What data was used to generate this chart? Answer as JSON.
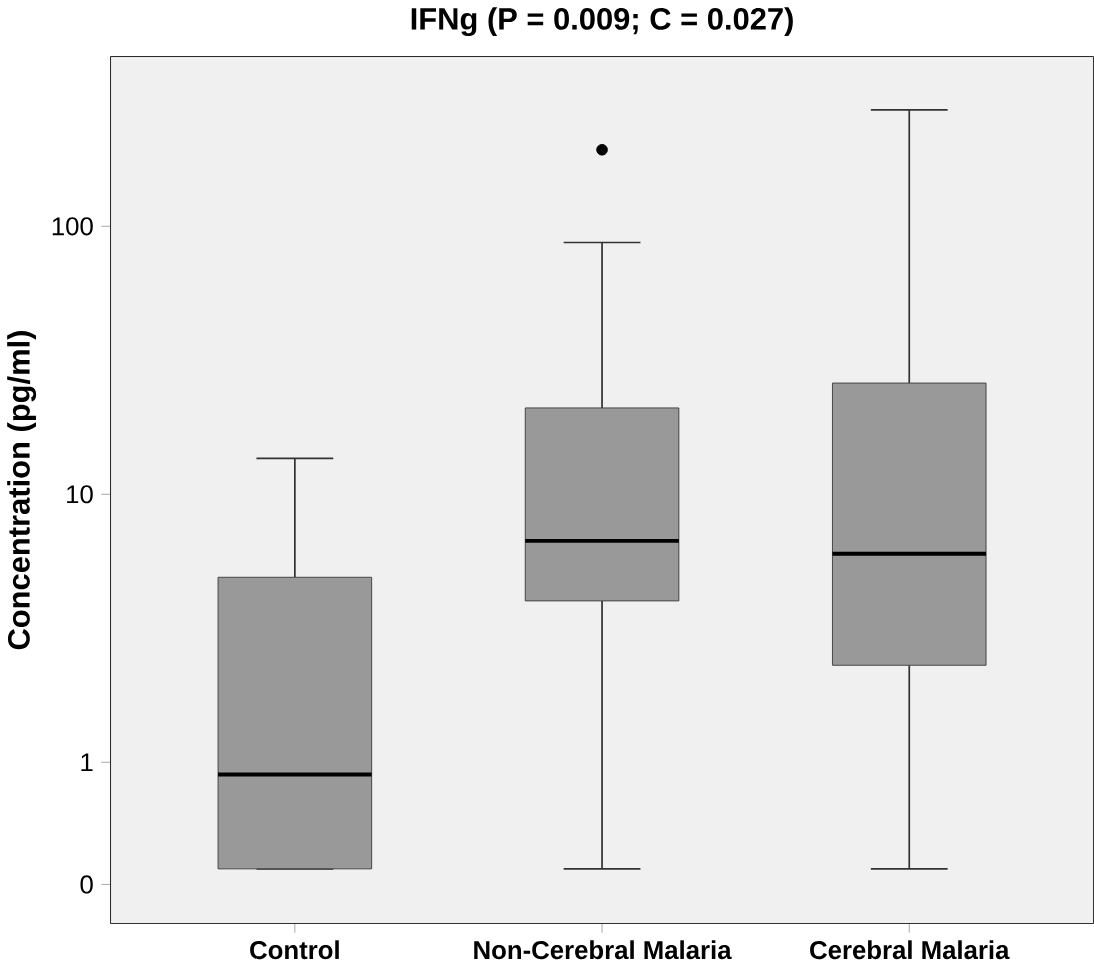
{
  "chart_data": {
    "type": "box",
    "title": "IFNg (P = 0.009; C = 0.027)",
    "ylabel": "Concentration (pg/ml)",
    "categories": [
      "Control",
      "Non-Cerebral Malaria",
      "Cerebral Malaria"
    ],
    "boxes": [
      {
        "low": 0.4,
        "q1": 0.4,
        "median": 0.9,
        "q3": 4.9,
        "high": 13.6
      },
      {
        "low": 0.4,
        "q1": 4,
        "median": 6.7,
        "q3": 21,
        "high": 87,
        "outliers": [
          193
        ]
      },
      {
        "low": 0.4,
        "q1": 2.3,
        "median": 6,
        "q3": 26,
        "high": 272
      }
    ],
    "color": "#999999",
    "log": true,
    "ylim": [
      0.25,
      430
    ],
    "yticks": [
      {
        "value": 0.35,
        "label": "0"
      },
      1,
      10,
      100
    ]
  }
}
